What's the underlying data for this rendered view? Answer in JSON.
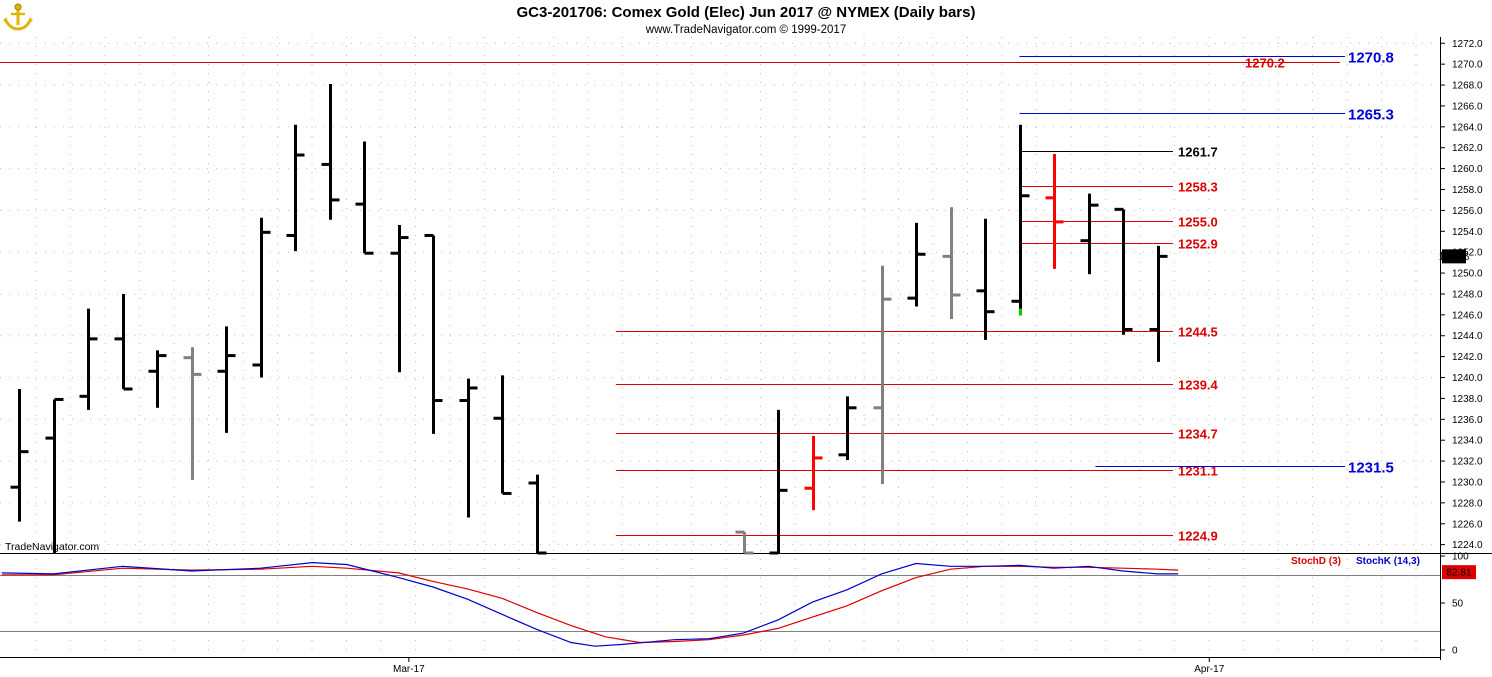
{
  "header": {
    "title": "GC3-201706:  Comex Gold (Elec) Jun 2017 @ NYMEX  (Daily bars)",
    "subtitle": "www.TradeNavigator.com © 1999-2017",
    "watermark": "TradeNavigator.com",
    "logo_icon": "anchor-icon"
  },
  "colors": {
    "up_bar": "#000000",
    "down_bar": "#ff0000",
    "neutral_bar": "#808080",
    "red_level": "#dd0000",
    "blue_level": "#0000dd",
    "stoch_d": "#dd0000",
    "stoch_k": "#0000cc"
  },
  "chart_data": {
    "type": "ohlc",
    "price_axis": {
      "ylim": [
        1223.2,
        1272.6
      ],
      "ticks": [
        "1272.0",
        "1270.0",
        "1268.0",
        "1266.0",
        "1264.0",
        "1262.0",
        "1260.0",
        "1258.0",
        "1256.0",
        "1254.0",
        "1252.0",
        "1250.0",
        "1248.0",
        "1246.0",
        "1244.0",
        "1242.0",
        "1240.0",
        "1238.0",
        "1236.0",
        "1234.0",
        "1232.0",
        "1230.0",
        "1228.0",
        "1226.0",
        "1224.0"
      ],
      "last_price": "1251.6"
    },
    "x_axis": {
      "date_labels": [
        {
          "label": "Mar-17",
          "bar": 11.3
        },
        {
          "label": "Apr-17",
          "bar": 34.5
        }
      ]
    },
    "bars": [
      {
        "o": 1229.5,
        "h": 1238.9,
        "l": 1226.2,
        "c": 1232.9,
        "color": "black"
      },
      {
        "o": 1234.2,
        "h": 1237.9,
        "l": 1223.2,
        "c": 1237.9,
        "color": "black"
      },
      {
        "o": 1238.2,
        "h": 1246.6,
        "l": 1236.9,
        "c": 1243.7,
        "color": "black"
      },
      {
        "o": 1243.7,
        "h": 1248.0,
        "l": 1238.9,
        "c": 1238.9,
        "color": "black"
      },
      {
        "o": 1240.6,
        "h": 1242.6,
        "l": 1237.1,
        "c": 1242.1,
        "color": "black"
      },
      {
        "o": 1241.9,
        "h": 1242.9,
        "l": 1230.2,
        "c": 1240.3,
        "color": "gray"
      },
      {
        "o": 1240.6,
        "h": 1244.9,
        "l": 1234.7,
        "c": 1242.1,
        "color": "black"
      },
      {
        "o": 1241.2,
        "h": 1255.3,
        "l": 1240.0,
        "c": 1253.9,
        "color": "black"
      },
      {
        "o": 1253.6,
        "h": 1264.2,
        "l": 1252.1,
        "c": 1261.3,
        "color": "black"
      },
      {
        "o": 1260.4,
        "h": 1268.1,
        "l": 1255.1,
        "c": 1257.0,
        "color": "black"
      },
      {
        "o": 1256.6,
        "h": 1262.6,
        "l": 1251.9,
        "c": 1251.9,
        "color": "black"
      },
      {
        "o": 1251.9,
        "h": 1254.6,
        "l": 1240.5,
        "c": 1253.4,
        "color": "black"
      },
      {
        "o": 1253.6,
        "h": 1253.6,
        "l": 1234.6,
        "c": 1237.8,
        "color": "black"
      },
      {
        "o": 1237.8,
        "h": 1239.9,
        "l": 1226.6,
        "c": 1239.0,
        "color": "black"
      },
      {
        "o": 1236.1,
        "h": 1240.2,
        "l": 1228.9,
        "c": 1228.9,
        "color": "black"
      },
      {
        "o": 1229.9,
        "h": 1230.7,
        "l": 1223.2,
        "c": 1223.2,
        "color": "black"
      },
      null,
      null,
      null,
      null,
      null,
      {
        "o": 1225.2,
        "h": 1225.2,
        "l": 1223.2,
        "c": 1223.2,
        "color": "gray"
      },
      {
        "o": 1223.2,
        "h": 1236.9,
        "l": 1223.2,
        "c": 1229.2,
        "color": "black"
      },
      {
        "o": 1229.4,
        "h": 1234.4,
        "l": 1227.3,
        "c": 1232.3,
        "color": "red"
      },
      {
        "o": 1232.6,
        "h": 1238.2,
        "l": 1232.1,
        "c": 1237.1,
        "color": "black"
      },
      {
        "o": 1237.1,
        "h": 1250.7,
        "l": 1229.8,
        "c": 1247.5,
        "color": "gray"
      },
      {
        "o": 1247.6,
        "h": 1254.8,
        "l": 1246.8,
        "c": 1251.8,
        "color": "black"
      },
      {
        "o": 1251.6,
        "h": 1256.3,
        "l": 1245.6,
        "c": 1247.9,
        "color": "gray"
      },
      {
        "o": 1248.3,
        "h": 1255.2,
        "l": 1243.6,
        "c": 1246.3,
        "color": "black"
      },
      {
        "o": 1247.3,
        "h": 1264.2,
        "l": 1246.4,
        "c": 1257.4,
        "color": "black"
      },
      {
        "o": 1257.2,
        "h": 1261.4,
        "l": 1250.4,
        "c": 1254.9,
        "color": "red"
      },
      {
        "o": 1253.1,
        "h": 1257.6,
        "l": 1249.9,
        "c": 1256.5,
        "color": "black"
      },
      {
        "o": 1256.1,
        "h": 1256.1,
        "l": 1244.1,
        "c": 1244.6,
        "color": "black"
      },
      {
        "o": 1244.6,
        "h": 1252.6,
        "l": 1241.5,
        "c": 1251.6,
        "color": "black"
      }
    ],
    "levels": [
      {
        "value": 1270.2,
        "label": "1270.2",
        "color": "red",
        "from_bar": -1
      },
      {
        "value": 1270.8,
        "label": "1270.8",
        "color": "blue",
        "from_bar": 29
      },
      {
        "value": 1265.3,
        "label": "1265.3",
        "color": "blue",
        "from_bar": 29
      },
      {
        "value": 1261.7,
        "label": "1261.7",
        "color": "black",
        "from_bar": 29
      },
      {
        "value": 1258.3,
        "label": "1258.3",
        "color": "red",
        "from_bar": 29
      },
      {
        "value": 1255.0,
        "label": "1255.0",
        "color": "red",
        "from_bar": 29
      },
      {
        "value": 1252.9,
        "label": "1252.9",
        "color": "red",
        "from_bar": 29
      },
      {
        "value": 1244.5,
        "label": "1244.5",
        "color": "red",
        "from_bar": 17.3
      },
      {
        "value": 1239.4,
        "label": "1239.4",
        "color": "red",
        "from_bar": 17.3
      },
      {
        "value": 1234.7,
        "label": "1234.7",
        "color": "red",
        "from_bar": 17.3
      },
      {
        "value": 1231.1,
        "label": "1231.1",
        "color": "red",
        "from_bar": 17.3
      },
      {
        "value": 1231.5,
        "label": "1231.5",
        "color": "blue",
        "from_bar": 31.2
      },
      {
        "value": 1224.9,
        "label": "1224.9",
        "color": "red",
        "from_bar": 17.3
      }
    ],
    "stochastic": {
      "ylim": [
        0,
        100
      ],
      "ticks": [
        "100",
        "50",
        "0"
      ],
      "ref_lines": [
        80,
        20
      ],
      "last_value": "82.81",
      "legend": [
        {
          "name": "StochD (3)",
          "color": "red"
        },
        {
          "name": "StochK (14,3)",
          "color": "blue"
        }
      ],
      "d_points": [
        [
          -0.5,
          80
        ],
        [
          1,
          80
        ],
        [
          3,
          87
        ],
        [
          5,
          85
        ],
        [
          7,
          86
        ],
        [
          8.5,
          89
        ],
        [
          9.5,
          87
        ],
        [
          11,
          82
        ],
        [
          12,
          73
        ],
        [
          13,
          65
        ],
        [
          14,
          55
        ],
        [
          15,
          40
        ],
        [
          16,
          26
        ],
        [
          17,
          14
        ],
        [
          18,
          8
        ],
        [
          19,
          9
        ],
        [
          20,
          11
        ],
        [
          21,
          16
        ],
        [
          22,
          23
        ],
        [
          23,
          35
        ],
        [
          24,
          47
        ],
        [
          25,
          63
        ],
        [
          26,
          77
        ],
        [
          27,
          86
        ],
        [
          28,
          89
        ],
        [
          29,
          89
        ],
        [
          30,
          88
        ],
        [
          31,
          88
        ],
        [
          32,
          87
        ],
        [
          33,
          86
        ],
        [
          33.6,
          85
        ]
      ],
      "k_points": [
        [
          -0.5,
          82
        ],
        [
          1,
          81
        ],
        [
          3,
          89
        ],
        [
          5,
          84
        ],
        [
          7,
          87
        ],
        [
          8.5,
          93
        ],
        [
          9.5,
          91
        ],
        [
          11,
          77
        ],
        [
          12,
          67
        ],
        [
          13,
          54
        ],
        [
          14,
          38
        ],
        [
          15,
          22
        ],
        [
          16,
          8
        ],
        [
          16.7,
          4
        ],
        [
          17.5,
          6
        ],
        [
          19,
          11
        ],
        [
          20,
          12
        ],
        [
          21,
          18
        ],
        [
          22,
          32
        ],
        [
          23,
          51
        ],
        [
          24,
          64
        ],
        [
          25,
          81
        ],
        [
          26,
          92
        ],
        [
          27,
          89
        ],
        [
          28,
          89
        ],
        [
          29,
          90
        ],
        [
          30,
          87
        ],
        [
          31,
          89
        ],
        [
          32,
          84
        ],
        [
          33,
          81
        ],
        [
          33.6,
          81
        ]
      ]
    }
  }
}
